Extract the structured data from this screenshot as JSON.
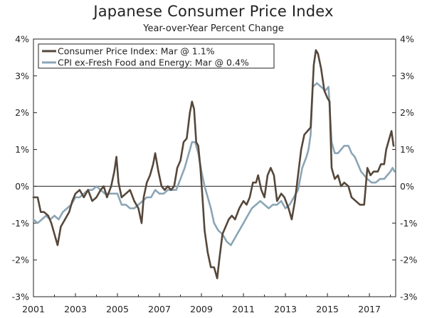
{
  "title": "Japanese Consumer Price Index",
  "subtitle": "Year-over-Year Percent Change",
  "chart_data": {
    "type": "line",
    "title": "Japanese Consumer Price Index",
    "subtitle": "Year-over-Year Percent Change",
    "xlabel": "",
    "ylabel": "",
    "xlim": [
      2001,
      2018.25
    ],
    "ylim": [
      -3,
      4
    ],
    "y_ticks": [
      -3,
      -2,
      -1,
      0,
      1,
      2,
      3,
      4
    ],
    "y_tick_labels": [
      "-3%",
      "-2%",
      "-1%",
      "0%",
      "1%",
      "2%",
      "3%",
      "4%"
    ],
    "x_ticks": [
      2001,
      2003,
      2005,
      2007,
      2009,
      2011,
      2013,
      2015,
      2017
    ],
    "x_tick_labels": [
      "2001",
      "2003",
      "2005",
      "2007",
      "2009",
      "2011",
      "2013",
      "2015",
      "2017"
    ],
    "grid": false,
    "zero_line": true,
    "legend_position": "top-left",
    "series": [
      {
        "name": "Consumer Price Index: Mar @ 1.1%",
        "color": "#55473a",
        "points": [
          [
            2001.0,
            -0.3
          ],
          [
            2001.2,
            -0.3
          ],
          [
            2001.35,
            -0.7
          ],
          [
            2001.5,
            -0.7
          ],
          [
            2001.7,
            -0.8
          ],
          [
            2001.85,
            -1.0
          ],
          [
            2002.0,
            -1.3
          ],
          [
            2002.15,
            -1.6
          ],
          [
            2002.3,
            -1.1
          ],
          [
            2002.5,
            -0.9
          ],
          [
            2002.7,
            -0.7
          ],
          [
            2002.85,
            -0.4
          ],
          [
            2003.0,
            -0.2
          ],
          [
            2003.2,
            -0.1
          ],
          [
            2003.4,
            -0.3
          ],
          [
            2003.6,
            -0.1
          ],
          [
            2003.8,
            -0.4
          ],
          [
            2004.0,
            -0.3
          ],
          [
            2004.2,
            -0.1
          ],
          [
            2004.35,
            0.0
          ],
          [
            2004.5,
            -0.3
          ],
          [
            2004.7,
            0.0
          ],
          [
            2004.85,
            0.4
          ],
          [
            2004.95,
            0.8
          ],
          [
            2005.05,
            0.1
          ],
          [
            2005.2,
            -0.3
          ],
          [
            2005.4,
            -0.2
          ],
          [
            2005.6,
            -0.1
          ],
          [
            2005.8,
            -0.4
          ],
          [
            2006.0,
            -0.6
          ],
          [
            2006.15,
            -1.0
          ],
          [
            2006.25,
            -0.3
          ],
          [
            2006.4,
            0.1
          ],
          [
            2006.55,
            0.3
          ],
          [
            2006.7,
            0.6
          ],
          [
            2006.8,
            0.9
          ],
          [
            2006.95,
            0.4
          ],
          [
            2007.1,
            0.0
          ],
          [
            2007.25,
            -0.1
          ],
          [
            2007.4,
            0.0
          ],
          [
            2007.55,
            -0.1
          ],
          [
            2007.7,
            0.0
          ],
          [
            2007.85,
            0.5
          ],
          [
            2008.0,
            0.7
          ],
          [
            2008.15,
            1.2
          ],
          [
            2008.3,
            1.3
          ],
          [
            2008.45,
            2.0
          ],
          [
            2008.55,
            2.3
          ],
          [
            2008.65,
            2.1
          ],
          [
            2008.75,
            1.2
          ],
          [
            2008.85,
            1.1
          ],
          [
            2008.95,
            0.5
          ],
          [
            2009.05,
            -0.3
          ],
          [
            2009.15,
            -1.2
          ],
          [
            2009.3,
            -1.8
          ],
          [
            2009.45,
            -2.2
          ],
          [
            2009.6,
            -2.2
          ],
          [
            2009.75,
            -2.5
          ],
          [
            2009.85,
            -2.0
          ],
          [
            2010.0,
            -1.3
          ],
          [
            2010.15,
            -1.1
          ],
          [
            2010.3,
            -0.9
          ],
          [
            2010.45,
            -0.8
          ],
          [
            2010.6,
            -0.9
          ],
          [
            2010.8,
            -0.6
          ],
          [
            2011.0,
            -0.4
          ],
          [
            2011.15,
            -0.5
          ],
          [
            2011.3,
            -0.3
          ],
          [
            2011.45,
            0.1
          ],
          [
            2011.6,
            0.1
          ],
          [
            2011.7,
            0.3
          ],
          [
            2011.85,
            -0.1
          ],
          [
            2012.0,
            -0.3
          ],
          [
            2012.15,
            0.3
          ],
          [
            2012.3,
            0.5
          ],
          [
            2012.45,
            0.3
          ],
          [
            2012.6,
            -0.4
          ],
          [
            2012.8,
            -0.2
          ],
          [
            2012.95,
            -0.3
          ],
          [
            2013.15,
            -0.6
          ],
          [
            2013.3,
            -0.9
          ],
          [
            2013.45,
            -0.4
          ],
          [
            2013.6,
            0.3
          ],
          [
            2013.75,
            1.0
          ],
          [
            2013.9,
            1.4
          ],
          [
            2014.05,
            1.5
          ],
          [
            2014.2,
            1.6
          ],
          [
            2014.35,
            3.3
          ],
          [
            2014.45,
            3.7
          ],
          [
            2014.55,
            3.6
          ],
          [
            2014.7,
            3.2
          ],
          [
            2014.85,
            2.6
          ],
          [
            2015.0,
            2.4
          ],
          [
            2015.1,
            2.3
          ],
          [
            2015.2,
            0.5
          ],
          [
            2015.35,
            0.2
          ],
          [
            2015.5,
            0.3
          ],
          [
            2015.65,
            0.0
          ],
          [
            2015.8,
            0.1
          ],
          [
            2016.0,
            0.0
          ],
          [
            2016.15,
            -0.3
          ],
          [
            2016.35,
            -0.4
          ],
          [
            2016.55,
            -0.5
          ],
          [
            2016.75,
            -0.5
          ],
          [
            2016.9,
            0.5
          ],
          [
            2017.05,
            0.3
          ],
          [
            2017.2,
            0.4
          ],
          [
            2017.4,
            0.4
          ],
          [
            2017.55,
            0.6
          ],
          [
            2017.7,
            0.6
          ],
          [
            2017.8,
            1.0
          ],
          [
            2017.95,
            1.3
          ],
          [
            2018.05,
            1.5
          ],
          [
            2018.15,
            1.1
          ]
        ]
      },
      {
        "name": "CPI ex-Fresh Food and Energy: Mar @ 0.4%",
        "color": "#8ba5b5",
        "points": [
          [
            2001.0,
            -0.9
          ],
          [
            2001.2,
            -1.0
          ],
          [
            2001.4,
            -0.9
          ],
          [
            2001.6,
            -0.8
          ],
          [
            2001.8,
            -0.9
          ],
          [
            2002.0,
            -0.8
          ],
          [
            2002.2,
            -0.9
          ],
          [
            2002.4,
            -0.7
          ],
          [
            2002.6,
            -0.6
          ],
          [
            2002.8,
            -0.5
          ],
          [
            2003.0,
            -0.3
          ],
          [
            2003.2,
            -0.3
          ],
          [
            2003.4,
            -0.2
          ],
          [
            2003.6,
            -0.1
          ],
          [
            2003.8,
            -0.1
          ],
          [
            2004.0,
            0.0
          ],
          [
            2004.2,
            -0.1
          ],
          [
            2004.4,
            -0.2
          ],
          [
            2004.6,
            -0.2
          ],
          [
            2004.8,
            -0.2
          ],
          [
            2005.0,
            -0.2
          ],
          [
            2005.2,
            -0.5
          ],
          [
            2005.4,
            -0.5
          ],
          [
            2005.6,
            -0.6
          ],
          [
            2005.8,
            -0.6
          ],
          [
            2006.0,
            -0.5
          ],
          [
            2006.2,
            -0.4
          ],
          [
            2006.4,
            -0.3
          ],
          [
            2006.6,
            -0.3
          ],
          [
            2006.8,
            -0.1
          ],
          [
            2007.0,
            -0.2
          ],
          [
            2007.2,
            -0.2
          ],
          [
            2007.4,
            -0.1
          ],
          [
            2007.6,
            -0.1
          ],
          [
            2007.8,
            -0.1
          ],
          [
            2008.0,
            0.2
          ],
          [
            2008.2,
            0.5
          ],
          [
            2008.4,
            0.9
          ],
          [
            2008.55,
            1.2
          ],
          [
            2008.7,
            1.2
          ],
          [
            2008.85,
            0.9
          ],
          [
            2009.0,
            0.4
          ],
          [
            2009.15,
            0.0
          ],
          [
            2009.3,
            -0.3
          ],
          [
            2009.45,
            -0.6
          ],
          [
            2009.6,
            -1.0
          ],
          [
            2009.8,
            -1.2
          ],
          [
            2010.0,
            -1.3
          ],
          [
            2010.2,
            -1.5
          ],
          [
            2010.4,
            -1.6
          ],
          [
            2010.6,
            -1.4
          ],
          [
            2010.8,
            -1.2
          ],
          [
            2011.0,
            -1.0
          ],
          [
            2011.2,
            -0.8
          ],
          [
            2011.4,
            -0.6
          ],
          [
            2011.6,
            -0.5
          ],
          [
            2011.8,
            -0.4
          ],
          [
            2012.0,
            -0.5
          ],
          [
            2012.2,
            -0.6
          ],
          [
            2012.4,
            -0.5
          ],
          [
            2012.6,
            -0.5
          ],
          [
            2012.8,
            -0.4
          ],
          [
            2013.0,
            -0.6
          ],
          [
            2013.2,
            -0.5
          ],
          [
            2013.4,
            -0.3
          ],
          [
            2013.6,
            -0.1
          ],
          [
            2013.8,
            0.5
          ],
          [
            2014.0,
            0.8
          ],
          [
            2014.1,
            1.0
          ],
          [
            2014.2,
            1.4
          ],
          [
            2014.3,
            2.7
          ],
          [
            2014.5,
            2.8
          ],
          [
            2014.7,
            2.7
          ],
          [
            2014.9,
            2.6
          ],
          [
            2015.05,
            2.7
          ],
          [
            2015.2,
            1.2
          ],
          [
            2015.35,
            0.9
          ],
          [
            2015.5,
            0.9
          ],
          [
            2015.65,
            1.0
          ],
          [
            2015.8,
            1.1
          ],
          [
            2016.0,
            1.1
          ],
          [
            2016.15,
            0.9
          ],
          [
            2016.3,
            0.8
          ],
          [
            2016.45,
            0.6
          ],
          [
            2016.6,
            0.4
          ],
          [
            2016.75,
            0.3
          ],
          [
            2016.9,
            0.2
          ],
          [
            2017.1,
            0.1
          ],
          [
            2017.3,
            0.1
          ],
          [
            2017.5,
            0.2
          ],
          [
            2017.7,
            0.2
          ],
          [
            2017.85,
            0.3
          ],
          [
            2018.0,
            0.4
          ],
          [
            2018.1,
            0.5
          ],
          [
            2018.2,
            0.4
          ]
        ]
      }
    ]
  }
}
